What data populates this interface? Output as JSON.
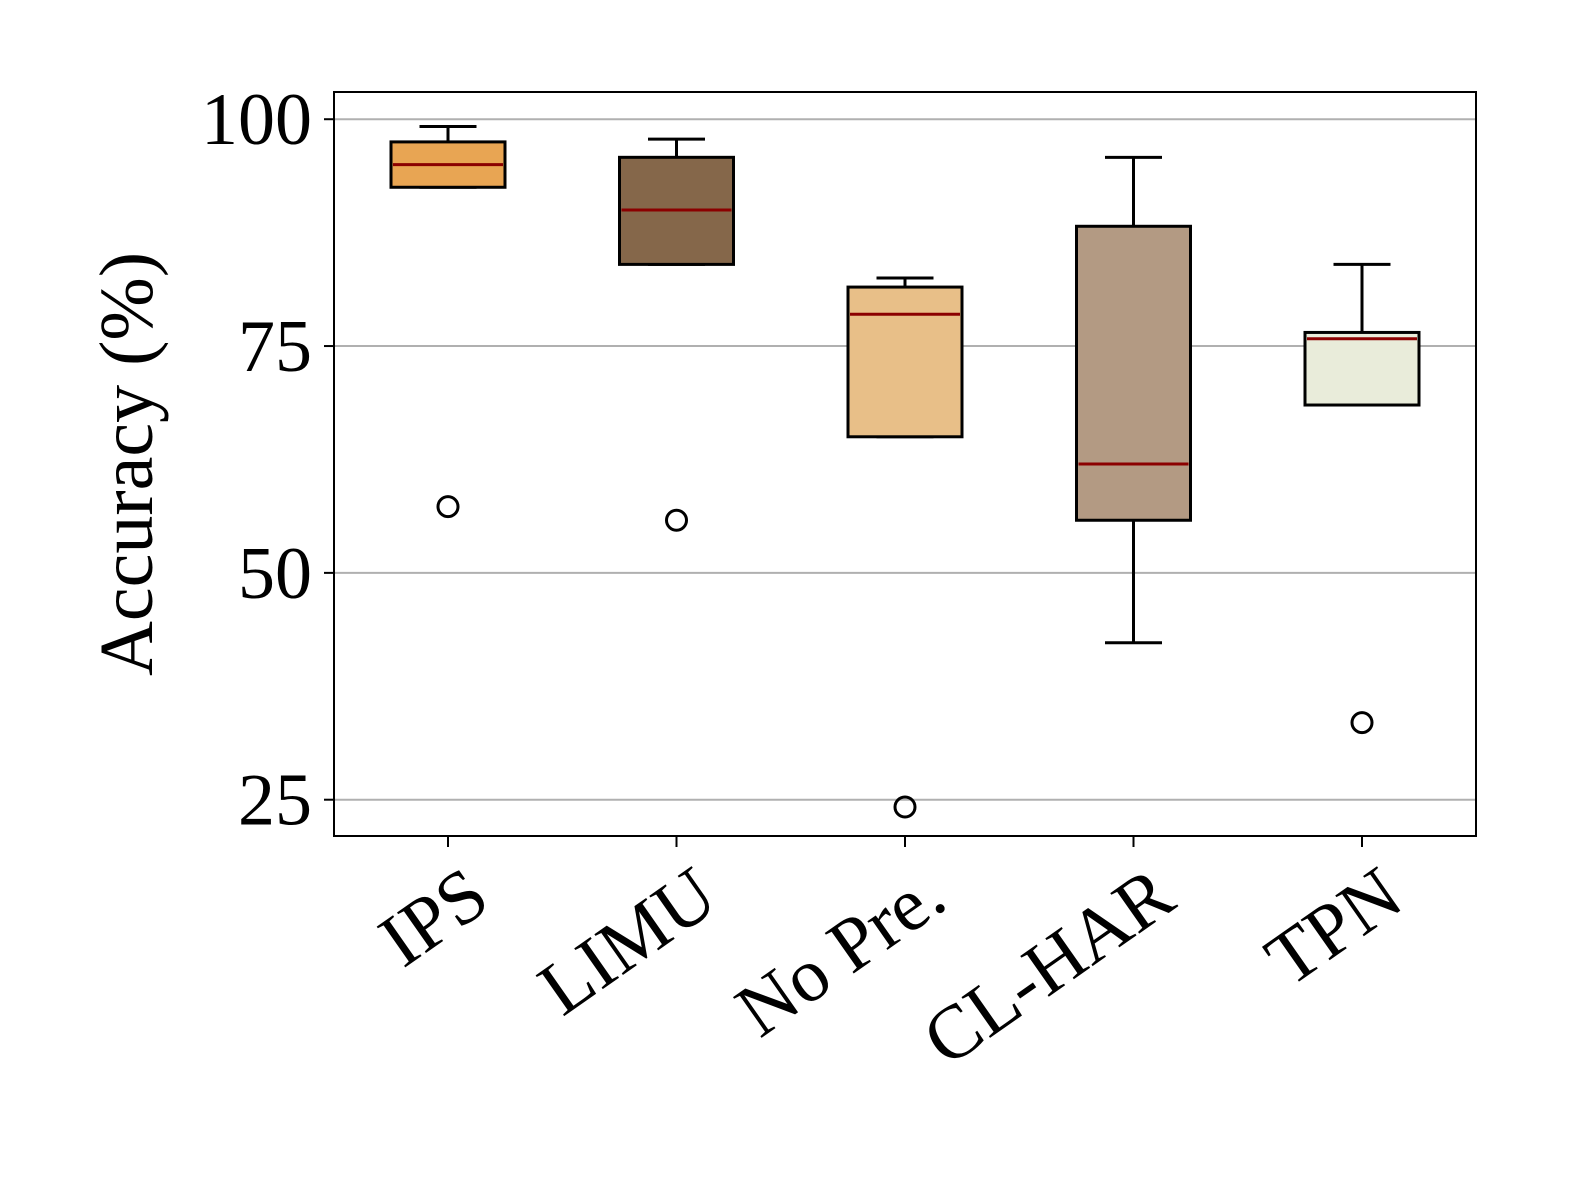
{
  "chart_data": {
    "type": "box",
    "categories": [
      "IPS",
      "LIMU",
      "No Pre.",
      "CL-HAR",
      "TPN"
    ],
    "ylabel": "Accuracy (%)",
    "xlabel": "",
    "title": "",
    "ylim": [
      21,
      103
    ],
    "yticks": [
      25,
      50,
      75,
      100
    ],
    "grid": "horizontal",
    "boxes": [
      {
        "name": "IPS",
        "whisker_low": 92.5,
        "q1": 92.5,
        "median": 95.0,
        "q3": 97.5,
        "whisker_high": 99.2,
        "outliers": [
          57.3
        ],
        "color": "#E8A553"
      },
      {
        "name": "LIMU",
        "whisker_low": 84.0,
        "q1": 84.0,
        "median": 90.0,
        "q3": 95.8,
        "whisker_high": 97.8,
        "outliers": [
          55.8
        ],
        "color": "#85674A"
      },
      {
        "name": "No Pre.",
        "whisker_low": 65.0,
        "q1": 65.0,
        "median": 78.5,
        "q3": 81.5,
        "whisker_high": 82.5,
        "outliers": [
          24.2
        ],
        "color": "#E8BF88"
      },
      {
        "name": "CL-HAR",
        "whisker_low": 42.3,
        "q1": 55.8,
        "median": 62.0,
        "q3": 88.2,
        "whisker_high": 95.8,
        "outliers": [],
        "color": "#B39A83"
      },
      {
        "name": "TPN",
        "whisker_low": 68.5,
        "q1": 68.5,
        "median": 75.8,
        "q3": 76.5,
        "whisker_high": 84.0,
        "outliers": [
          33.5
        ],
        "color": "#E9ECDA"
      }
    ],
    "median_color": "#8B0000",
    "grid_color": "#b0b0b0"
  }
}
